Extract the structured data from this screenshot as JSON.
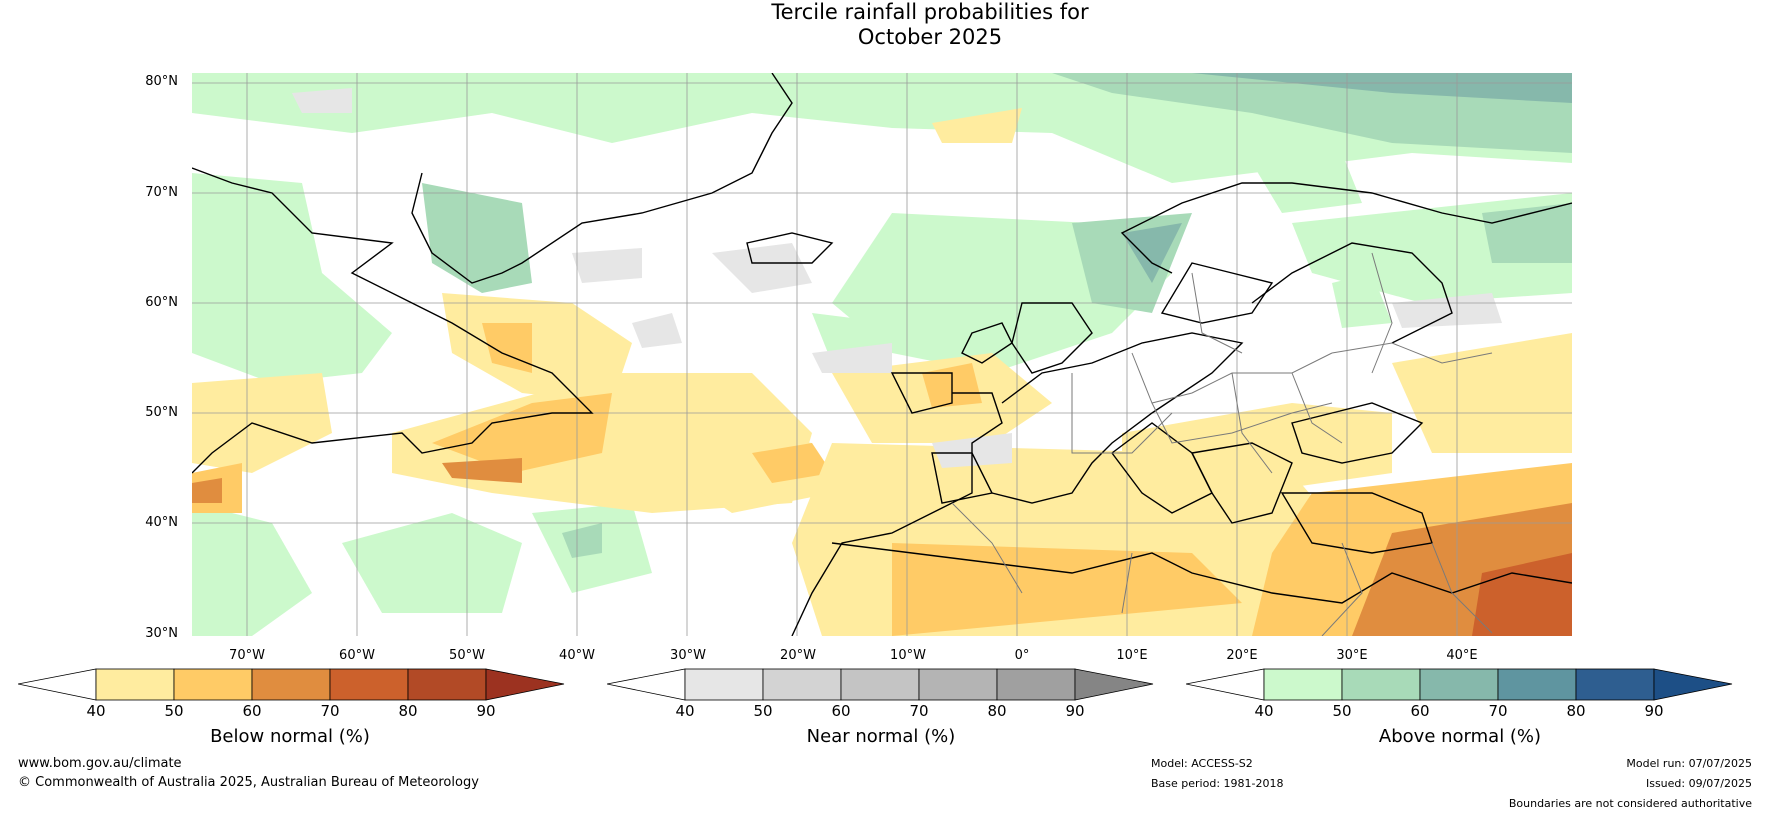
{
  "title_line1": "Tercile rainfall probabilities for",
  "title_line2": "October 2025",
  "lat_labels": [
    "80°N",
    "70°N",
    "60°N",
    "50°N",
    "40°N",
    "30°N"
  ],
  "lon_labels": [
    "70°W",
    "60°W",
    "50°W",
    "40°W",
    "30°W",
    "20°W",
    "10°W",
    "0°",
    "10°E",
    "20°E",
    "30°E",
    "40°E"
  ],
  "colorbars": [
    {
      "label": "Below normal (%)",
      "ticks": [
        "40",
        "50",
        "60",
        "70",
        "80",
        "90"
      ],
      "colors": [
        "#ffffff",
        "#ffec9f",
        "#ffcb66",
        "#e08d3f",
        "#cc612c",
        "#b24a26",
        "#9c3220"
      ]
    },
    {
      "label": "Near normal (%)",
      "ticks": [
        "40",
        "50",
        "60",
        "70",
        "80",
        "90"
      ],
      "colors": [
        "#ffffff",
        "#e6e6e6",
        "#d3d3d3",
        "#c4c4c4",
        "#b4b4b4",
        "#a0a0a0",
        "#858585"
      ]
    },
    {
      "label": "Above normal (%)",
      "ticks": [
        "40",
        "50",
        "60",
        "70",
        "80",
        "90"
      ],
      "colors": [
        "#ffffff",
        "#ccf9cc",
        "#a8dab8",
        "#86b8ab",
        "#5f95a0",
        "#2e5e90",
        "#1d4f86"
      ]
    }
  ],
  "footer": {
    "website": "www.bom.gov.au/climate",
    "copyright": "© Commonwealth of Australia 2025, Australian Bureau of Meteorology",
    "model": "Model: ACCESS-S2",
    "base_period": "Base period: 1981-2018",
    "model_run": "Model run: 07/07/2025",
    "issued": "Issued: 09/07/2025",
    "disclaimer": "Boundaries are not considered authoritative"
  }
}
